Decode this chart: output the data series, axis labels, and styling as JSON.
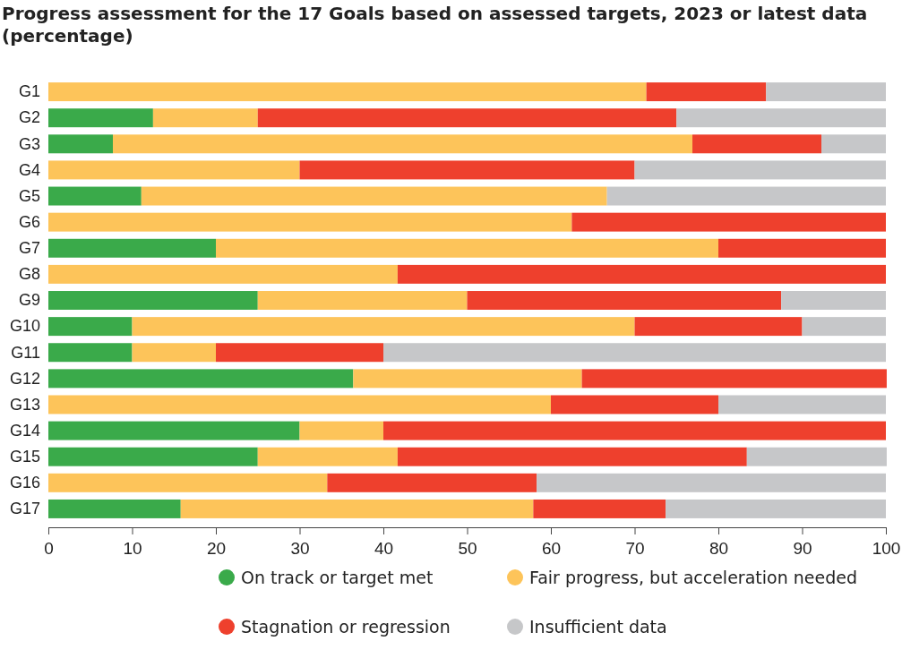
{
  "chart_data": {
    "type": "bar",
    "orientation": "horizontal",
    "stacked": true,
    "title": "Progress assessment for the 17 Goals based on assessed targets, 2023 or latest data (percentage)",
    "categories": [
      "G1",
      "G2",
      "G3",
      "G4",
      "G5",
      "G6",
      "G7",
      "G8",
      "G9",
      "G10",
      "G11",
      "G12",
      "G13",
      "G14",
      "G15",
      "G16",
      "G17"
    ],
    "series": [
      {
        "name": "On track or target met",
        "color": "#3aaa4a",
        "values": [
          0,
          12.5,
          7.7,
          0,
          11.1,
          0,
          20,
          0,
          25,
          10,
          10,
          36.4,
          0,
          30,
          25,
          0,
          15.8
        ]
      },
      {
        "name": "Fair progress, but acceleration needed",
        "color": "#fdc45a",
        "values": [
          71.4,
          12.5,
          69.2,
          30,
          55.6,
          62.5,
          60,
          41.7,
          25,
          60,
          10,
          27.3,
          60,
          10,
          16.7,
          33.3,
          42.1
        ]
      },
      {
        "name": "Stagnation or regression",
        "color": "#ee402d",
        "values": [
          14.3,
          50,
          15.4,
          40,
          0,
          37.5,
          20,
          58.3,
          37.5,
          20,
          20,
          36.4,
          20,
          60,
          41.7,
          25,
          15.8
        ]
      },
      {
        "name": "Insufficient data",
        "color": "#c6c7c9",
        "values": [
          14.3,
          25,
          7.7,
          30,
          33.3,
          0,
          0,
          0,
          12.5,
          10,
          60,
          0,
          20,
          0,
          16.7,
          41.7,
          26.3
        ]
      }
    ],
    "xlim": [
      0,
      100
    ],
    "xticks": [
      0,
      10,
      20,
      30,
      40,
      50,
      60,
      70,
      80,
      90,
      100
    ],
    "grid": false,
    "legend": "bottom"
  }
}
